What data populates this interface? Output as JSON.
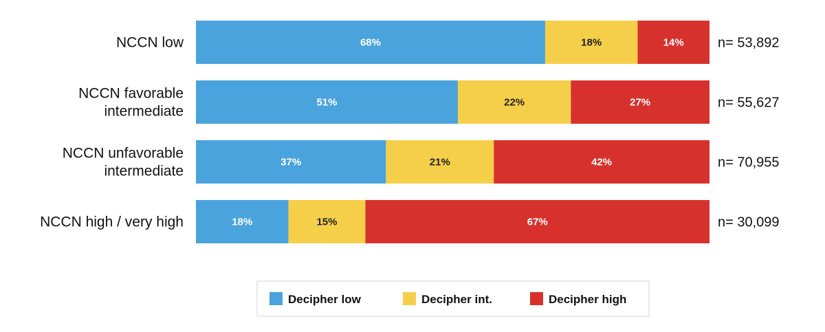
{
  "chart_data": {
    "type": "bar",
    "orientation": "horizontal",
    "stacked": true,
    "categories": [
      [
        "NCCN low"
      ],
      [
        "NCCN favorable",
        "intermediate"
      ],
      [
        "NCCN unfavorable",
        "intermediate"
      ],
      [
        "NCCN high / very high"
      ]
    ],
    "series": [
      {
        "name": "Decipher low",
        "color": "#4aa3dc",
        "label_color": "#ffffff",
        "values": [
          68,
          51,
          37,
          18
        ]
      },
      {
        "name": "Decipher int.",
        "color": "#f6cf4a",
        "label_color": "#222222",
        "values": [
          18,
          22,
          21,
          15
        ]
      },
      {
        "name": "Decipher high",
        "color": "#d7312d",
        "label_color": "#ffffff",
        "values": [
          14,
          27,
          42,
          67
        ]
      }
    ],
    "value_suffix": "%",
    "sample_sizes": [
      "n= 53,892",
      "n= 55,627",
      "n= 70,955",
      "n= 30,099"
    ],
    "xlim": [
      0,
      100
    ],
    "grid": false,
    "legend_position": "bottom-center",
    "title": "",
    "xlabel": "",
    "ylabel": ""
  }
}
